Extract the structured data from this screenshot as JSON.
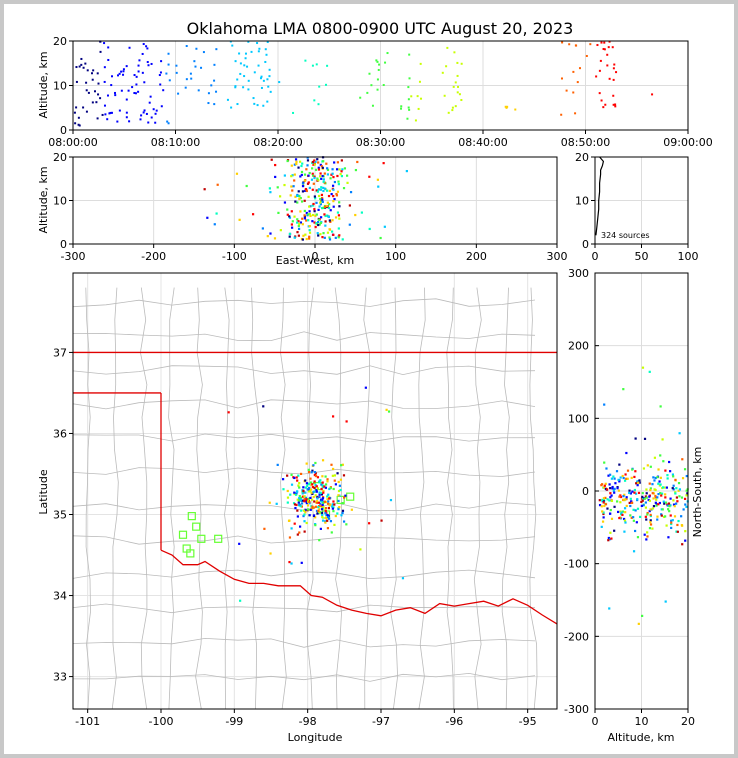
{
  "title": "Oklahoma LMA 0800-0900 UTC August 20, 2023",
  "source_count_label": "324 sources",
  "colors": {
    "time_scale": [
      "#000080",
      "#0000ff",
      "#0080ff",
      "#00c8ff",
      "#00ffc0",
      "#40ff40",
      "#c8ff00",
      "#ffd000",
      "#ff6000",
      "#ff0000",
      "#c00000"
    ],
    "state_border": "#e00000",
    "county_lines": "#bbbbbb",
    "stations": "#66ff33",
    "grid": "#dddddd"
  },
  "chart_data": [
    {
      "type": "scatter",
      "panel": "altitude-time",
      "xlabel": "",
      "ylabel": "Altitude, km",
      "xlim": [
        "08:00:00",
        "09:00:00"
      ],
      "ylim": [
        0,
        20
      ],
      "xticks": [
        "08:00:00",
        "08:10:00",
        "08:20:00",
        "08:30:00",
        "08:40:00",
        "08:50:00",
        "09:00:00"
      ],
      "yticks": [
        0,
        10,
        20
      ],
      "color_by": "time",
      "clusters": [
        {
          "t_start": 0.0,
          "t_end": 9.5,
          "count": 110,
          "alt_min": 1,
          "alt_max": 20
        },
        {
          "t_start": 10.0,
          "t_end": 14.0,
          "count": 22,
          "alt_min": 5,
          "alt_max": 19
        },
        {
          "t_start": 15.0,
          "t_end": 19.5,
          "count": 45,
          "alt_min": 5,
          "alt_max": 20
        },
        {
          "t_start": 20.0,
          "t_end": 25.0,
          "count": 10,
          "alt_min": 3,
          "alt_max": 16
        },
        {
          "t_start": 28.0,
          "t_end": 31.0,
          "count": 14,
          "alt_min": 5,
          "alt_max": 18
        },
        {
          "t_start": 32.0,
          "t_end": 34.0,
          "count": 16,
          "alt_min": 2,
          "alt_max": 17
        },
        {
          "t_start": 36.0,
          "t_end": 38.0,
          "count": 18,
          "alt_min": 3,
          "alt_max": 20
        },
        {
          "t_start": 41.0,
          "t_end": 44.0,
          "count": 4,
          "alt_min": 4,
          "alt_max": 6
        },
        {
          "t_start": 47.5,
          "t_end": 50.5,
          "count": 14,
          "alt_min": 3,
          "alt_max": 20
        },
        {
          "t_start": 51.0,
          "t_end": 53.0,
          "count": 26,
          "alt_min": 4,
          "alt_max": 20
        },
        {
          "t_start": 56.0,
          "t_end": 56.5,
          "count": 1,
          "alt_min": 8,
          "alt_max": 8
        }
      ]
    },
    {
      "type": "scatter",
      "panel": "altitude-eastwest",
      "xlabel": "East-West, km",
      "ylabel": "Altitude, km",
      "xlim": [
        -300,
        300
      ],
      "ylim": [
        0,
        20
      ],
      "xticks": [
        -300,
        -200,
        -100,
        0,
        100,
        200,
        300
      ],
      "yticks": [
        0,
        10,
        20
      ],
      "center_x": 0,
      "spread_x": 22,
      "count": 324
    },
    {
      "type": "line",
      "panel": "altitude-histogram",
      "xlim": [
        0,
        100
      ],
      "ylim": [
        0,
        20
      ],
      "xticks": [
        0,
        50,
        100
      ],
      "yticks": [
        0,
        10,
        20
      ],
      "altitude": [
        2,
        4,
        6,
        8,
        10,
        12,
        14,
        16,
        17,
        18,
        19,
        20
      ],
      "counts": [
        1,
        2,
        3,
        4,
        4,
        5,
        5,
        6,
        6,
        8,
        9,
        5
      ]
    },
    {
      "type": "scatter",
      "panel": "plan-view",
      "xlabel": "Longitude",
      "ylabel": "Latitude",
      "xlim": [
        -101.2,
        -94.6
      ],
      "ylim": [
        32.6,
        37.98
      ],
      "xticks": [
        -101,
        -100,
        -99,
        -98,
        -97,
        -96,
        -95
      ],
      "yticks": [
        33,
        34,
        35,
        36,
        37
      ],
      "storm_center": {
        "lon": -97.9,
        "lat": 35.2
      },
      "stations": [
        {
          "lon": -99.58,
          "lat": 34.98
        },
        {
          "lon": -99.52,
          "lat": 34.85
        },
        {
          "lon": -99.45,
          "lat": 34.7
        },
        {
          "lon": -99.22,
          "lat": 34.7
        },
        {
          "lon": -99.7,
          "lat": 34.75
        },
        {
          "lon": -99.65,
          "lat": 34.58
        },
        {
          "lon": -99.6,
          "lat": 34.52
        },
        {
          "lon": -97.85,
          "lat": 35.35
        },
        {
          "lon": -97.55,
          "lat": 35.18
        },
        {
          "lon": -97.42,
          "lat": 35.22
        },
        {
          "lon": -97.75,
          "lat": 35.0
        }
      ]
    },
    {
      "type": "scatter",
      "panel": "northsouth-altitude",
      "xlabel": "Altitude, km",
      "ylabel": "North-South, km",
      "xlim": [
        0,
        20
      ],
      "ylim": [
        -300,
        300
      ],
      "xticks": [
        0,
        10,
        20
      ],
      "yticks": [
        -300,
        -200,
        -100,
        0,
        100,
        200,
        300
      ],
      "center_y": -10,
      "spread_y": 22
    }
  ]
}
